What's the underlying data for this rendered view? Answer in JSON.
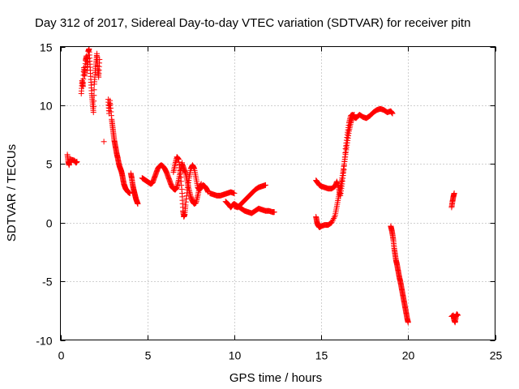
{
  "chart_data": {
    "type": "scatter",
    "title": "Day 312 of 2017, Sidereal Day-to-day VTEC variation (SDTVAR) for receiver pitn",
    "xlabel": "GPS time / hours",
    "ylabel": "SDTVAR / TECUs",
    "xlim": [
      0,
      25
    ],
    "ylim": [
      -10,
      15
    ],
    "xticks": [
      "0",
      "5",
      "10",
      "15",
      "20",
      "25"
    ],
    "xtick_values": [
      0,
      5,
      10,
      15,
      20,
      25
    ],
    "yticks": [
      "-10",
      "-5",
      "0",
      "5",
      "10",
      "15"
    ],
    "ytick_values": [
      -10,
      -5,
      0,
      5,
      10,
      15
    ],
    "grid": true,
    "marker": "plus",
    "color": "#ff0000",
    "series": [
      {
        "name": "SDTVAR",
        "segments": [
          [
            [
              0.4,
              5.8
            ],
            [
              0.45,
              5.2
            ],
            [
              0.5,
              4.9
            ],
            [
              0.55,
              5.4
            ],
            [
              0.8,
              5.3
            ],
            [
              0.9,
              5.1
            ],
            [
              0.95,
              5.2
            ]
          ],
          [
            [
              1.2,
              11.0
            ],
            [
              1.25,
              12.1
            ],
            [
              1.3,
              11.6
            ],
            [
              1.35,
              13.2
            ],
            [
              1.4,
              12.5
            ],
            [
              1.45,
              13.8
            ],
            [
              1.5,
              14.2
            ],
            [
              1.55,
              13.0
            ],
            [
              1.6,
              14.6
            ],
            [
              1.65,
              14.8
            ],
            [
              1.7,
              13.5
            ],
            [
              1.75,
              12.2
            ],
            [
              1.8,
              11.0
            ],
            [
              1.85,
              10.2
            ],
            [
              1.9,
              9.4
            ],
            [
              1.95,
              11.8
            ],
            [
              2.0,
              12.8
            ],
            [
              2.05,
              13.6
            ],
            [
              2.1,
              14.4
            ],
            [
              2.15,
              13.1
            ],
            [
              2.2,
              12.4
            ],
            [
              2.25,
              13.9
            ]
          ],
          [
            [
              2.5,
              6.9
            ]
          ],
          [
            [
              2.75,
              10.5
            ],
            [
              2.8,
              9.3
            ],
            [
              2.85,
              10.4
            ],
            [
              2.95,
              8.8
            ],
            [
              3.0,
              8.2
            ],
            [
              3.05,
              7.6
            ],
            [
              3.1,
              7.0
            ],
            [
              3.15,
              6.6
            ],
            [
              3.2,
              6.2
            ],
            [
              3.25,
              5.8
            ],
            [
              3.3,
              5.5
            ],
            [
              3.35,
              5.1
            ],
            [
              3.4,
              4.8
            ],
            [
              3.45,
              4.6
            ],
            [
              3.5,
              4.4
            ],
            [
              3.55,
              4.1
            ],
            [
              3.6,
              3.7
            ],
            [
              3.65,
              3.3
            ],
            [
              3.7,
              3.1
            ],
            [
              3.75,
              2.9
            ],
            [
              3.8,
              2.8
            ],
            [
              3.85,
              2.7
            ],
            [
              3.9,
              2.6
            ],
            [
              4.0,
              2.5
            ]
          ],
          [
            [
              4.05,
              4.2
            ],
            [
              4.1,
              3.8
            ],
            [
              4.15,
              3.3
            ],
            [
              4.2,
              2.9
            ],
            [
              4.25,
              2.6
            ],
            [
              4.3,
              2.3
            ],
            [
              4.35,
              2.0
            ],
            [
              4.4,
              1.8
            ],
            [
              4.45,
              1.6
            ]
          ],
          [
            [
              4.7,
              3.8
            ],
            [
              4.8,
              3.7
            ],
            [
              4.9,
              3.6
            ],
            [
              5.0,
              3.5
            ],
            [
              5.1,
              3.4
            ],
            [
              5.2,
              3.3
            ],
            [
              5.3,
              3.4
            ],
            [
              5.4,
              3.8
            ],
            [
              5.5,
              4.2
            ],
            [
              5.6,
              4.6
            ],
            [
              5.7,
              4.8
            ],
            [
              5.8,
              4.9
            ],
            [
              5.9,
              4.8
            ],
            [
              6.0,
              4.6
            ],
            [
              6.1,
              4.3
            ],
            [
              6.2,
              3.9
            ],
            [
              6.3,
              3.5
            ],
            [
              6.4,
              3.1
            ],
            [
              6.5,
              2.9
            ],
            [
              6.6,
              2.8
            ],
            [
              6.7,
              3.0
            ],
            [
              6.8,
              3.6
            ],
            [
              6.9,
              4.4
            ],
            [
              7.0,
              5.1
            ]
          ],
          [
            [
              6.5,
              4.3
            ],
            [
              6.6,
              5.0
            ],
            [
              6.7,
              5.6
            ],
            [
              6.8,
              5.4
            ],
            [
              6.9,
              4.2
            ],
            [
              7.0,
              2.5
            ],
            [
              7.05,
              1.0
            ],
            [
              7.1,
              0.5
            ],
            [
              7.15,
              0.7
            ],
            [
              7.2,
              1.5
            ],
            [
              7.3,
              2.8
            ],
            [
              7.4,
              3.8
            ],
            [
              7.5,
              4.6
            ],
            [
              7.6,
              4.9
            ],
            [
              7.7,
              4.6
            ],
            [
              7.8,
              3.8
            ],
            [
              7.9,
              3.0
            ],
            [
              8.0,
              2.8
            ],
            [
              8.1,
              3.0
            ],
            [
              8.2,
              3.2
            ],
            [
              8.3,
              3.1
            ],
            [
              8.4,
              2.9
            ],
            [
              8.5,
              2.6
            ]
          ],
          [
            [
              7.0,
              5.0
            ],
            [
              7.1,
              4.6
            ],
            [
              7.2,
              4.2
            ],
            [
              7.3,
              3.5
            ],
            [
              7.4,
              2.8
            ],
            [
              7.5,
              2.2
            ],
            [
              7.6,
              1.8
            ],
            [
              7.7,
              1.6
            ],
            [
              7.8,
              1.7
            ],
            [
              7.9,
              2.3
            ],
            [
              8.0,
              3.0
            ],
            [
              8.1,
              3.3
            ]
          ],
          [
            [
              8.6,
              2.5
            ],
            [
              8.8,
              2.4
            ],
            [
              9.0,
              2.3
            ],
            [
              9.2,
              2.3
            ],
            [
              9.4,
              2.4
            ],
            [
              9.6,
              2.5
            ],
            [
              9.8,
              2.6
            ],
            [
              10.0,
              2.5
            ]
          ],
          [
            [
              9.5,
              1.8
            ],
            [
              9.7,
              1.5
            ],
            [
              9.8,
              1.3
            ],
            [
              9.9,
              1.5
            ],
            [
              10.0,
              1.6
            ],
            [
              10.2,
              1.4
            ],
            [
              10.4,
              1.2
            ],
            [
              10.6,
              1.0
            ],
            [
              10.8,
              0.9
            ],
            [
              11.0,
              0.8
            ],
            [
              11.2,
              1.0
            ],
            [
              11.4,
              1.2
            ],
            [
              11.6,
              1.1
            ],
            [
              11.8,
              1.0
            ],
            [
              12.0,
              1.0
            ],
            [
              12.2,
              0.9
            ],
            [
              12.3,
              0.9
            ]
          ],
          [
            [
              10.0,
              1.4
            ],
            [
              10.2,
              1.3
            ],
            [
              10.4,
              1.6
            ],
            [
              10.6,
              1.9
            ],
            [
              10.8,
              2.2
            ],
            [
              11.0,
              2.5
            ],
            [
              11.2,
              2.8
            ],
            [
              11.4,
              3.0
            ],
            [
              11.6,
              3.1
            ],
            [
              11.8,
              3.2
            ]
          ],
          [
            [
              14.7,
              0.5
            ],
            [
              14.75,
              0.1
            ],
            [
              14.8,
              -0.2
            ],
            [
              14.9,
              -0.4
            ],
            [
              15.0,
              -0.3
            ],
            [
              15.2,
              -0.2
            ],
            [
              15.4,
              -0.2
            ],
            [
              15.6,
              0.0
            ],
            [
              15.8,
              0.6
            ],
            [
              15.9,
              1.4
            ],
            [
              16.0,
              2.2
            ],
            [
              16.1,
              3.0
            ],
            [
              16.2,
              3.8
            ],
            [
              16.3,
              4.8
            ],
            [
              16.4,
              5.8
            ],
            [
              16.5,
              6.8
            ],
            [
              16.6,
              7.8
            ],
            [
              16.7,
              8.5
            ],
            [
              16.8,
              9.0
            ],
            [
              16.9,
              9.2
            ]
          ],
          [
            [
              14.7,
              3.6
            ],
            [
              14.8,
              3.4
            ],
            [
              14.9,
              3.2
            ],
            [
              15.0,
              3.1
            ],
            [
              15.2,
              3.0
            ],
            [
              15.4,
              2.9
            ],
            [
              15.6,
              2.9
            ],
            [
              15.8,
              3.1
            ],
            [
              15.9,
              3.5
            ],
            [
              16.0,
              3.0
            ],
            [
              16.1,
              2.3
            ],
            [
              16.2,
              3.3
            ],
            [
              16.3,
              4.5
            ],
            [
              16.4,
              6.3
            ],
            [
              16.5,
              7.5
            ],
            [
              16.6,
              8.5
            ],
            [
              16.7,
              9.1
            ],
            [
              16.8,
              9.2
            ],
            [
              16.9,
              9.0
            ],
            [
              17.0,
              8.9
            ],
            [
              17.2,
              9.2
            ],
            [
              17.4,
              9.0
            ],
            [
              17.6,
              8.9
            ],
            [
              17.8,
              9.1
            ],
            [
              18.0,
              9.4
            ],
            [
              18.2,
              9.6
            ],
            [
              18.4,
              9.7
            ],
            [
              18.6,
              9.6
            ],
            [
              18.8,
              9.4
            ],
            [
              19.0,
              9.5
            ],
            [
              19.1,
              9.3
            ]
          ],
          [
            [
              19.0,
              -0.3
            ],
            [
              19.05,
              -0.6
            ],
            [
              19.1,
              -1.0
            ],
            [
              19.15,
              -1.5
            ],
            [
              19.2,
              -2.2
            ],
            [
              19.25,
              -2.7
            ],
            [
              19.3,
              -3.2
            ],
            [
              19.35,
              -3.5
            ],
            [
              19.4,
              -3.9
            ],
            [
              19.45,
              -4.3
            ],
            [
              19.5,
              -4.7
            ],
            [
              19.55,
              -5.0
            ],
            [
              19.6,
              -5.4
            ],
            [
              19.65,
              -5.8
            ],
            [
              19.7,
              -6.2
            ],
            [
              19.75,
              -6.6
            ],
            [
              19.8,
              -7.0
            ],
            [
              19.85,
              -7.4
            ],
            [
              19.9,
              -7.8
            ],
            [
              19.95,
              -8.2
            ],
            [
              20.0,
              -8.5
            ]
          ],
          [
            [
              22.5,
              1.3
            ],
            [
              22.55,
              1.8
            ],
            [
              22.6,
              2.2
            ],
            [
              22.65,
              2.5
            ]
          ],
          [
            [
              22.5,
              -8.0
            ],
            [
              22.6,
              -7.9
            ],
            [
              22.65,
              -8.3
            ],
            [
              22.7,
              -8.5
            ],
            [
              22.75,
              -8.0
            ],
            [
              22.8,
              -7.8
            ],
            [
              22.85,
              -7.9
            ]
          ]
        ]
      }
    ]
  }
}
